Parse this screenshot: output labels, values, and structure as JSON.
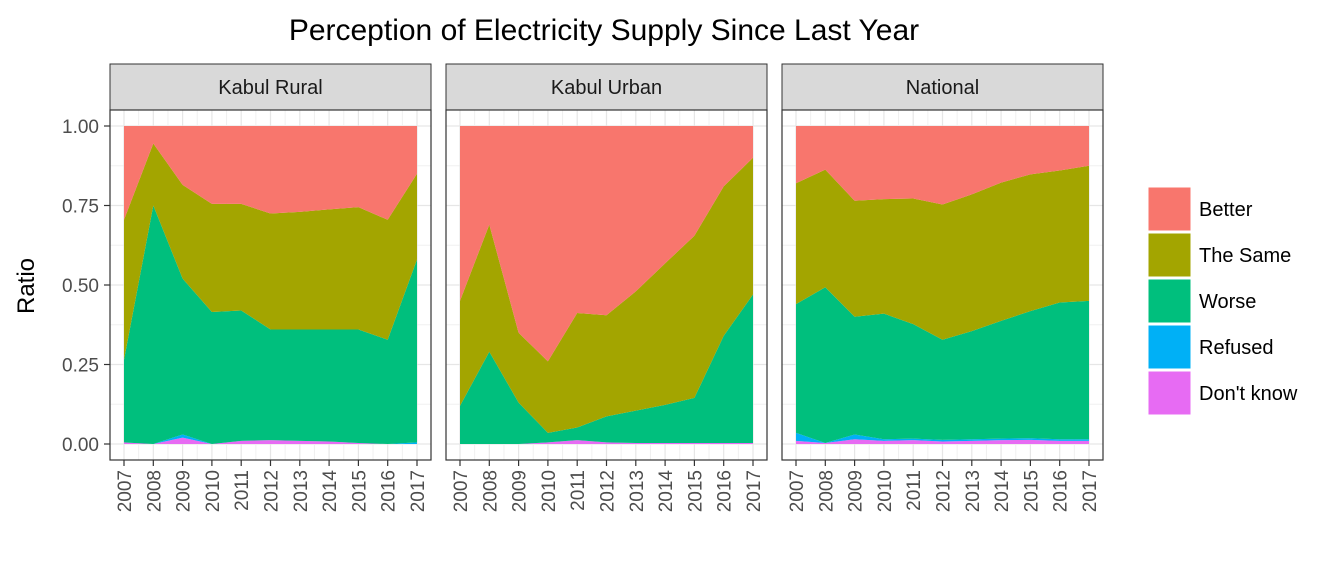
{
  "chart_data": {
    "type": "area",
    "title": "Perception of Electricity Supply Since Last Year",
    "xlabel": "",
    "ylabel": "Ratio",
    "x": [
      2007,
      2008,
      2009,
      2010,
      2011,
      2012,
      2013,
      2014,
      2015,
      2016,
      2017
    ],
    "x_tick_labels": [
      "2007",
      "2008",
      "2009",
      "2010",
      "2011",
      "2012",
      "2013",
      "2014",
      "2015",
      "2016",
      "2017"
    ],
    "ylim": [
      0,
      1
    ],
    "y_ticks": [
      0,
      0.25,
      0.5,
      0.75,
      1.0
    ],
    "y_tick_labels": [
      "0.00",
      "0.25",
      "0.50",
      "0.75",
      "1.00"
    ],
    "stacked": true,
    "grid": true,
    "legend_position": "right",
    "legend": [
      {
        "name": "Better",
        "color": "#F8766D"
      },
      {
        "name": "The Same",
        "color": "#A3A500"
      },
      {
        "name": "Worse",
        "color": "#00BF7D"
      },
      {
        "name": "Refused",
        "color": "#00B0F6"
      },
      {
        "name": "Don't know",
        "color": "#E76BF3"
      }
    ],
    "stack_order_bottom_to_top": [
      "Don't know",
      "Refused",
      "Worse",
      "The Same",
      "Better"
    ],
    "panels": [
      {
        "name": "Kabul Rural",
        "series": [
          {
            "name": "Don't know",
            "values": [
              0.005,
              0.0,
              0.02,
              0.0,
              0.01,
              0.012,
              0.01,
              0.008,
              0.003,
              0.0,
              0.0
            ]
          },
          {
            "name": "Refused",
            "values": [
              0.0,
              0.0,
              0.01,
              0.0,
              0.0,
              0.0,
              0.0,
              0.0,
              0.0,
              0.0,
              0.005
            ]
          },
          {
            "name": "Worse",
            "values": [
              0.26,
              0.75,
              0.49,
              0.415,
              0.41,
              0.348,
              0.35,
              0.352,
              0.357,
              0.328,
              0.575
            ]
          },
          {
            "name": "The Same",
            "values": [
              0.44,
              0.195,
              0.295,
              0.34,
              0.335,
              0.365,
              0.37,
              0.378,
              0.385,
              0.377,
              0.27
            ]
          },
          {
            "name": "Better",
            "values": [
              0.295,
              0.055,
              0.185,
              0.245,
              0.245,
              0.275,
              0.27,
              0.262,
              0.255,
              0.295,
              0.15
            ]
          }
        ]
      },
      {
        "name": "Kabul Urban",
        "series": [
          {
            "name": "Don't know",
            "values": [
              0.0,
              0.0,
              0.0,
              0.005,
              0.012,
              0.005,
              0.003,
              0.003,
              0.003,
              0.003,
              0.003
            ]
          },
          {
            "name": "Refused",
            "values": [
              0.0,
              0.0,
              0.0,
              0.0,
              0.0,
              0.0,
              0.0,
              0.0,
              0.0,
              0.0,
              0.0
            ]
          },
          {
            "name": "Worse",
            "values": [
              0.12,
              0.29,
              0.13,
              0.03,
              0.04,
              0.082,
              0.102,
              0.12,
              0.142,
              0.337,
              0.467
            ]
          },
          {
            "name": "The Same",
            "values": [
              0.33,
              0.4,
              0.22,
              0.225,
              0.36,
              0.318,
              0.375,
              0.445,
              0.51,
              0.47,
              0.43
            ]
          },
          {
            "name": "Better",
            "values": [
              0.55,
              0.31,
              0.65,
              0.74,
              0.588,
              0.595,
              0.52,
              0.432,
              0.345,
              0.19,
              0.1
            ]
          }
        ]
      },
      {
        "name": "National",
        "series": [
          {
            "name": "Don't know",
            "values": [
              0.01,
              0.003,
              0.015,
              0.01,
              0.012,
              0.008,
              0.01,
              0.012,
              0.013,
              0.01,
              0.01
            ]
          },
          {
            "name": "Refused",
            "values": [
              0.025,
              0.0,
              0.015,
              0.005,
              0.005,
              0.005,
              0.005,
              0.005,
              0.005,
              0.005,
              0.005
            ]
          },
          {
            "name": "Worse",
            "values": [
              0.405,
              0.49,
              0.37,
              0.395,
              0.36,
              0.315,
              0.34,
              0.37,
              0.4,
              0.43,
              0.435
            ]
          },
          {
            "name": "The Same",
            "values": [
              0.38,
              0.37,
              0.365,
              0.36,
              0.395,
              0.425,
              0.43,
              0.435,
              0.43,
              0.415,
              0.425
            ]
          },
          {
            "name": "Better",
            "values": [
              0.18,
              0.137,
              0.235,
              0.23,
              0.228,
              0.247,
              0.215,
              0.178,
              0.152,
              0.14,
              0.125
            ]
          }
        ]
      }
    ]
  }
}
